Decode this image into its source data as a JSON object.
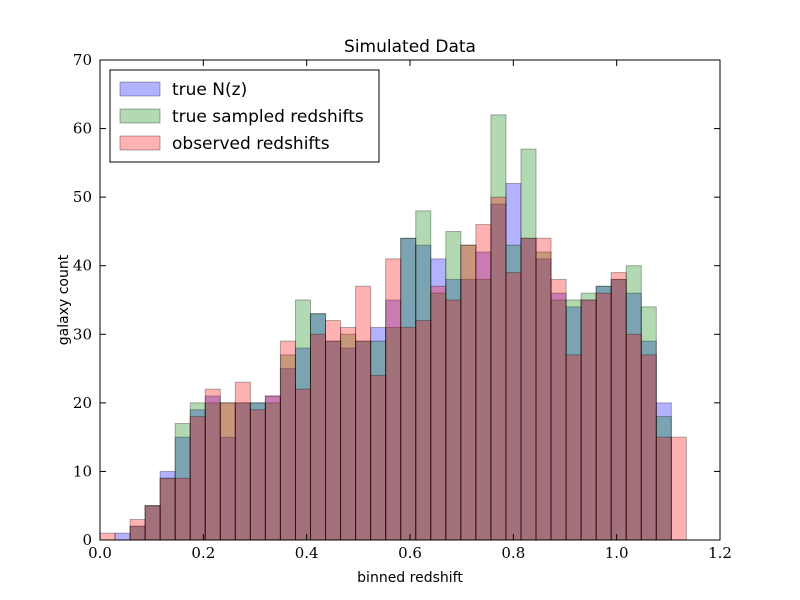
{
  "chart_data": {
    "type": "bar",
    "title": "Simulated Data",
    "xlabel": "binned redshift",
    "ylabel": "galaxy count",
    "xlim": [
      0.0,
      1.2
    ],
    "ylim": [
      0,
      70
    ],
    "xticks": [
      "0.0",
      "0.2",
      "0.4",
      "0.6",
      "0.8",
      "1.0",
      "1.2"
    ],
    "yticks": [
      "0",
      "10",
      "20",
      "30",
      "40",
      "50",
      "60",
      "70"
    ],
    "bin_width": 0.0291,
    "bin_left_edges": [
      0.0,
      0.0291,
      0.0582,
      0.0873,
      0.1164,
      0.1455,
      0.1746,
      0.2037,
      0.2328,
      0.2619,
      0.291,
      0.3201,
      0.3492,
      0.3783,
      0.4074,
      0.4365,
      0.4656,
      0.4947,
      0.5238,
      0.5529,
      0.582,
      0.6111,
      0.6402,
      0.6693,
      0.6984,
      0.7275,
      0.7566,
      0.7857,
      0.8148,
      0.8439,
      0.873,
      0.9021,
      0.9312,
      0.9603,
      0.9894,
      1.0185,
      1.0476,
      1.0767,
      1.1058
    ],
    "grid": false,
    "legend_position": "top-left",
    "series": [
      {
        "name": "true N(z)",
        "color": "#0000ff",
        "values": [
          0,
          1,
          2,
          5,
          10,
          15,
          19,
          21,
          15,
          20,
          20,
          21,
          25,
          28,
          33,
          29,
          28,
          29,
          31,
          35,
          44,
          43,
          41,
          38,
          38,
          42,
          49,
          52,
          44,
          41,
          36,
          34,
          35,
          37,
          38,
          36,
          29,
          20,
          0
        ]
      },
      {
        "name": "true sampled redshifts",
        "color": "#008000",
        "values": [
          0,
          0,
          2,
          5,
          9,
          17,
          20,
          20,
          20,
          20,
          20,
          20,
          27,
          35,
          33,
          29,
          30,
          29,
          29,
          31,
          44,
          48,
          36,
          45,
          43,
          38,
          62,
          43,
          57,
          42,
          35,
          35,
          36,
          37,
          38,
          40,
          34,
          18,
          0
        ]
      },
      {
        "name": "observed redshifts",
        "color": "#ff0000",
        "values": [
          1,
          0,
          3,
          5,
          9,
          9,
          18,
          22,
          20,
          23,
          19,
          21,
          29,
          22,
          30,
          32,
          31,
          37,
          24,
          41,
          31,
          32,
          37,
          35,
          43,
          46,
          50,
          39,
          44,
          44,
          38,
          27,
          35,
          36,
          39,
          30,
          27,
          15,
          15
        ]
      }
    ]
  }
}
